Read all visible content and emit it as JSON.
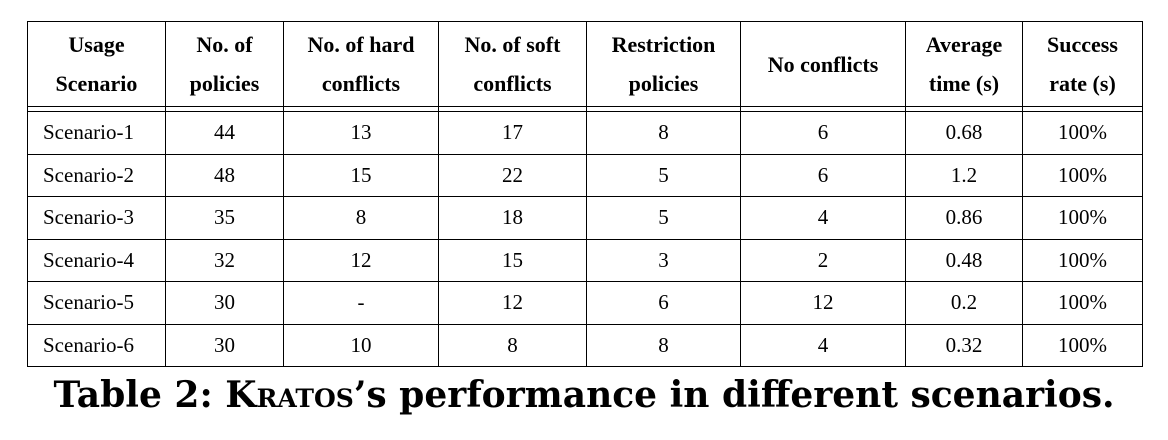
{
  "table": {
    "headers": [
      {
        "line1": "Usage",
        "line2": "Scenario"
      },
      {
        "line1": "No. of",
        "line2": "policies"
      },
      {
        "line1": "No. of hard",
        "line2": "conflicts"
      },
      {
        "line1": "No. of soft",
        "line2": "conflicts"
      },
      {
        "line1": "Restriction",
        "line2": "policies"
      },
      {
        "line1": "No conflicts",
        "line2": ""
      },
      {
        "line1": "Average",
        "line2": "time (s)"
      },
      {
        "line1": "Success",
        "line2": "rate (s)"
      }
    ],
    "rows": [
      [
        "Scenario-1",
        "44",
        "13",
        "17",
        "8",
        "6",
        "0.68",
        "100%"
      ],
      [
        "Scenario-2",
        "48",
        "15",
        "22",
        "5",
        "6",
        "1.2",
        "100%"
      ],
      [
        "Scenario-3",
        "35",
        "8",
        "18",
        "5",
        "4",
        "0.86",
        "100%"
      ],
      [
        "Scenario-4",
        "32",
        "12",
        "15",
        "3",
        "2",
        "0.48",
        "100%"
      ],
      [
        "Scenario-5",
        "30",
        "-",
        "12",
        "6",
        "12",
        "0.2",
        "100%"
      ],
      [
        "Scenario-6",
        "30",
        "10",
        "8",
        "8",
        "4",
        "0.32",
        "100%"
      ]
    ]
  },
  "caption": {
    "prefix": "Table 2: ",
    "name": "Kratos",
    "suffix": "’s performance in different scenarios."
  }
}
